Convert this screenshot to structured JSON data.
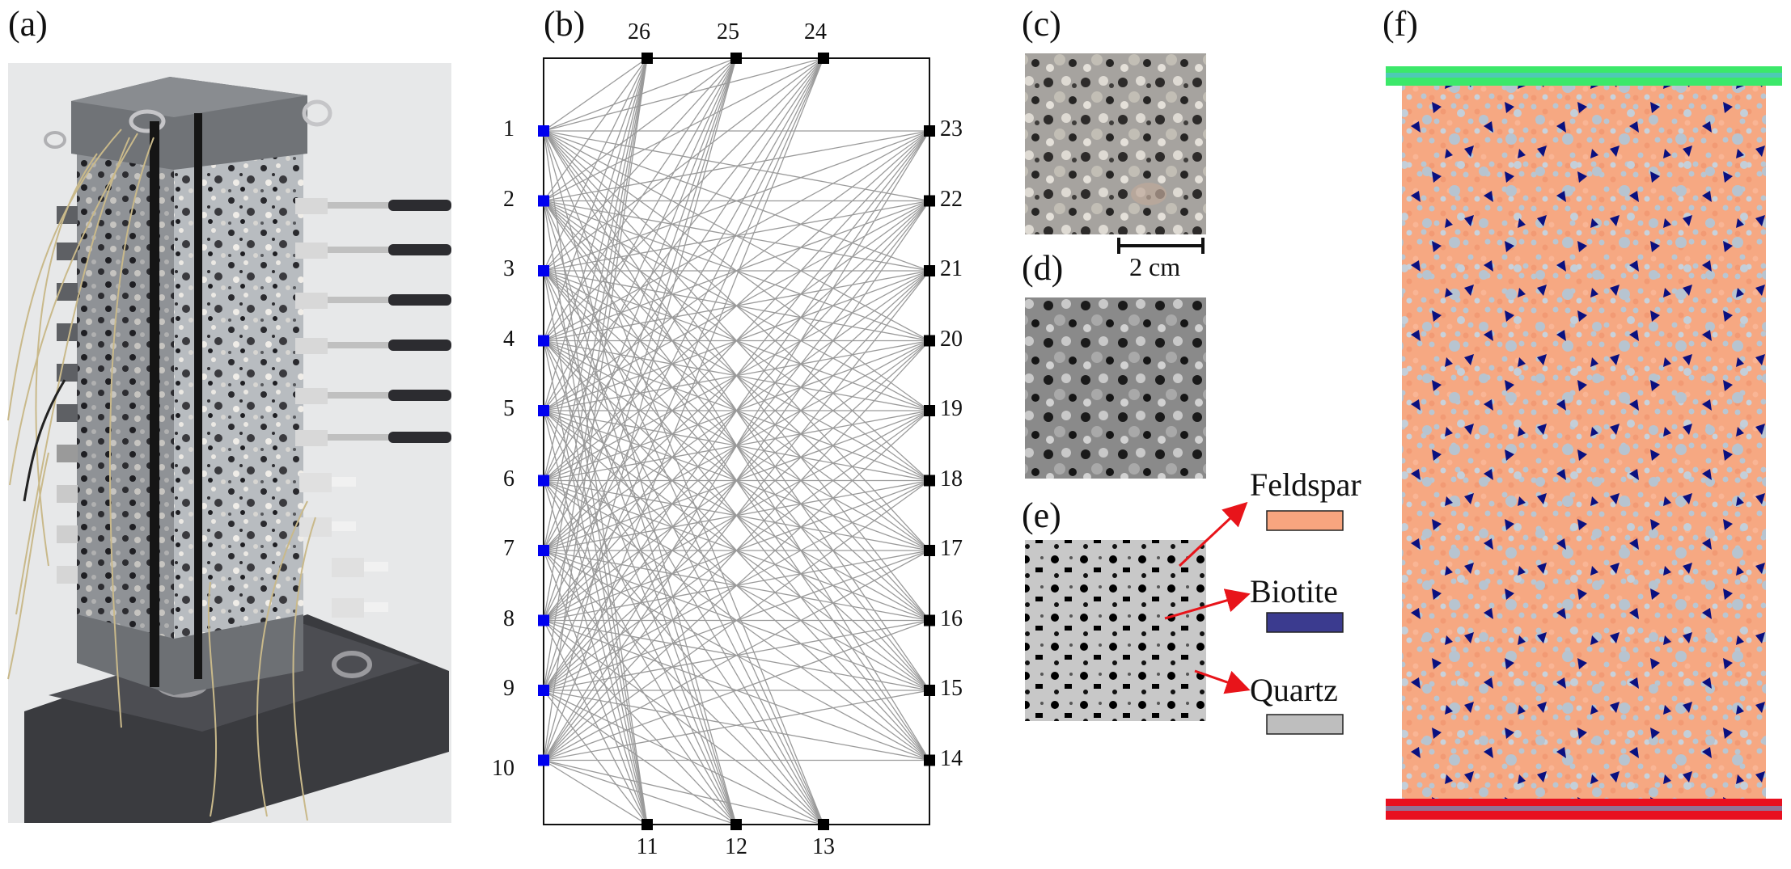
{
  "panels": {
    "a": "(a)",
    "b": "(b)",
    "c": "(c)",
    "d": "(d)",
    "e": "(e)",
    "f": "(f)"
  },
  "sensors": {
    "left": [
      "1",
      "2",
      "3",
      "4",
      "5",
      "6",
      "7",
      "8",
      "9",
      "10"
    ],
    "right": [
      "23",
      "22",
      "21",
      "20",
      "19",
      "18",
      "17",
      "16",
      "15",
      "14"
    ],
    "top": [
      "26",
      "25",
      "24"
    ],
    "bottom": [
      "11",
      "12",
      "13"
    ]
  },
  "scale_bar": "2 cm",
  "minerals": [
    {
      "name": "Feldspar",
      "color": "#F8A57F"
    },
    {
      "name": "Biotite",
      "color": "#3B3B8F"
    },
    {
      "name": "Quartz",
      "color": "#BEBEBE"
    }
  ],
  "colors": {
    "source_sensor": "#0000EE",
    "receiver_sensor": "#000000",
    "ray_path": "#9A9A9A",
    "arrow": "#E8141A",
    "top_platen": "#3CE86A",
    "bottom_platen": "#E81020",
    "grain_dark": "#0A1080"
  }
}
